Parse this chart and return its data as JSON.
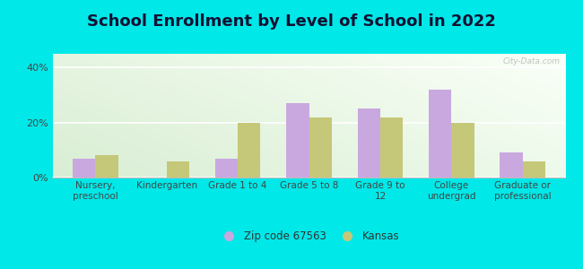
{
  "title": "School Enrollment by Level of School in 2022",
  "categories": [
    "Nursery,\npreschool",
    "Kindergarten",
    "Grade 1 to 4",
    "Grade 5 to 8",
    "Grade 9 to\n12",
    "College\nundergrad",
    "Graduate or\nprofessional"
  ],
  "zip_values": [
    7,
    0,
    7,
    27,
    25,
    32,
    9
  ],
  "kansas_values": [
    8,
    6,
    20,
    22,
    22,
    20,
    6
  ],
  "zip_color": "#c9a8df",
  "kansas_color": "#c5c878",
  "background_outer": "#00e8e8",
  "title_color": "#1a1a2e",
  "title_fontsize": 13,
  "legend_zip_label": "Zip code 67563",
  "legend_kansas_label": "Kansas",
  "ylim": [
    0,
    45
  ],
  "yticks": [
    0,
    20,
    40
  ],
  "ytick_labels": [
    "0%",
    "20%",
    "40%"
  ],
  "watermark": "City-Data.com",
  "tick_color": "#444444",
  "axis_label_fontsize": 7.5
}
